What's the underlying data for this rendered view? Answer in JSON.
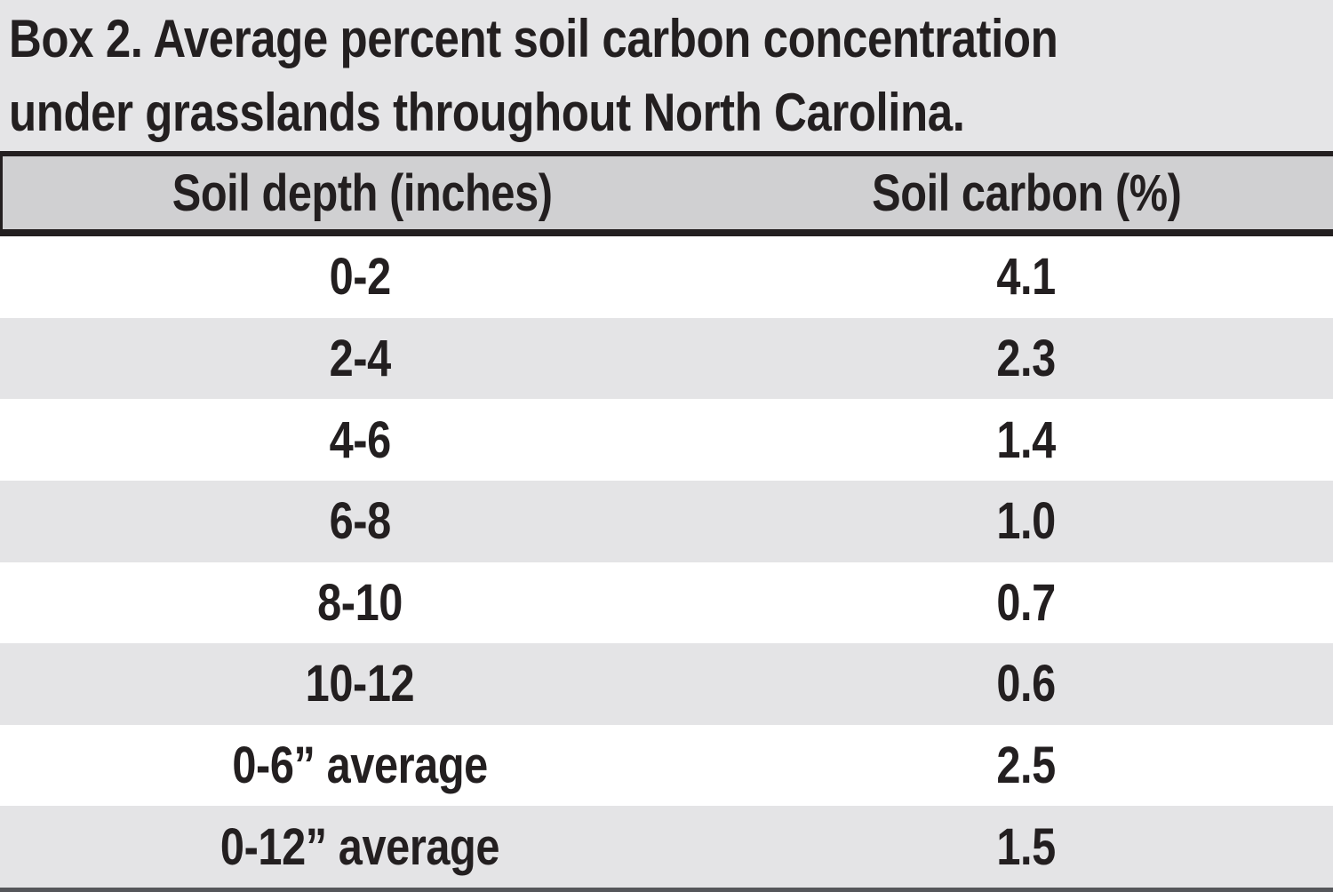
{
  "chart_data": {
    "type": "table",
    "title": "Box 2. Average percent soil carbon concentration under grasslands throughout North Carolina.",
    "title_lines": [
      "Box 2. Average percent soil carbon concentration",
      "under grasslands throughout North Carolina."
    ],
    "columns": [
      "Soil depth (inches)",
      "Soil carbon (%)"
    ],
    "rows": [
      [
        "0-2",
        "4.1"
      ],
      [
        "2-4",
        "2.3"
      ],
      [
        "4-6",
        "1.4"
      ],
      [
        "6-8",
        "1.0"
      ],
      [
        "8-10",
        "0.7"
      ],
      [
        "10-12",
        "0.6"
      ],
      [
        "0-6” average",
        "2.5"
      ],
      [
        "0-12” average",
        "1.5"
      ]
    ],
    "soil_carbon_pct_values": [
      4.1,
      2.3,
      1.4,
      1.0,
      0.7,
      0.6,
      2.5,
      1.5
    ]
  },
  "colors": {
    "title_background": "#e5e5e7",
    "header_background": "#d0d0d2",
    "row_alt_background": "#e4e4e6",
    "row_background": "#ffffff",
    "text": "#231f20",
    "rule_black": "#231f20",
    "rule_bottom_gray": "#55565a"
  }
}
